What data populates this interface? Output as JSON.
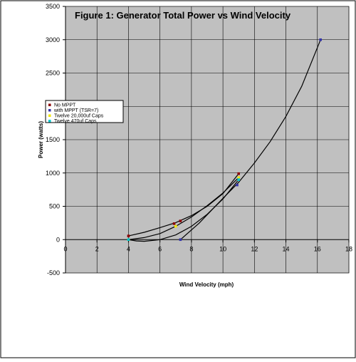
{
  "chart_data": {
    "type": "scatter",
    "title": "Figure 1: Generator Total Power vs Wind Velocity",
    "xlabel": "Wind Velocity (mph)",
    "ylabel": "Power (watts)",
    "xlim": [
      0,
      18
    ],
    "ylim": [
      -500,
      3500
    ],
    "xticks": [
      0,
      2,
      4,
      6,
      8,
      10,
      12,
      14,
      16,
      18
    ],
    "yticks": [
      -500,
      0,
      500,
      1000,
      1500,
      2000,
      2500,
      3000,
      3500
    ],
    "grid": true,
    "legend_position": "left",
    "series": [
      {
        "name": "No MPPT",
        "marker_color": "#8b0000",
        "x": [
          4.0,
          6.9,
          7.3,
          11.0
        ],
        "y": [
          55,
          240,
          280,
          990
        ],
        "trendline": [
          [
            4.0,
            55
          ],
          [
            5.0,
            110
          ],
          [
            6.0,
            180
          ],
          [
            7.0,
            255
          ],
          [
            8.0,
            360
          ],
          [
            9.0,
            500
          ],
          [
            10.0,
            690
          ],
          [
            11.0,
            990
          ]
        ]
      },
      {
        "name": "with MPPT (TSR=7)",
        "marker_color": "#3333aa",
        "x": [
          7.3,
          10.9,
          16.2
        ],
        "y": [
          0,
          820,
          3000
        ],
        "trendline": [
          [
            7.3,
            0
          ],
          [
            8.5,
            250
          ],
          [
            10.0,
            620
          ],
          [
            11.0,
            860
          ],
          [
            12.0,
            1150
          ],
          [
            13.0,
            1470
          ],
          [
            14.0,
            1850
          ],
          [
            15.0,
            2300
          ],
          [
            16.2,
            3000
          ]
        ]
      },
      {
        "name": "Twelve 20,000uf Caps",
        "marker_color": "#f2e600",
        "x": [
          4.0,
          7.0,
          11.0
        ],
        "y": [
          0,
          200,
          930
        ],
        "trendline": [
          [
            4.0,
            0
          ],
          [
            5.0,
            30
          ],
          [
            6.0,
            90
          ],
          [
            7.0,
            200
          ],
          [
            8.0,
            340
          ],
          [
            9.0,
            510
          ],
          [
            10.0,
            700
          ],
          [
            11.0,
            930
          ]
        ]
      },
      {
        "name": "Twelve 470uf Caps",
        "marker_color": "#00c8d0",
        "x": [
          4.0,
          11.0
        ],
        "y": [
          0,
          900
        ],
        "trendline": [
          [
            4.0,
            0
          ],
          [
            4.5,
            -20
          ],
          [
            5.0,
            -25
          ],
          [
            6.0,
            0
          ],
          [
            7.0,
            70
          ],
          [
            8.0,
            200
          ],
          [
            9.0,
            380
          ],
          [
            10.0,
            610
          ],
          [
            11.0,
            900
          ]
        ]
      }
    ]
  },
  "colors": {
    "plot_bg": "#c0c0c0",
    "grid": "#000000",
    "line": "#000000"
  }
}
